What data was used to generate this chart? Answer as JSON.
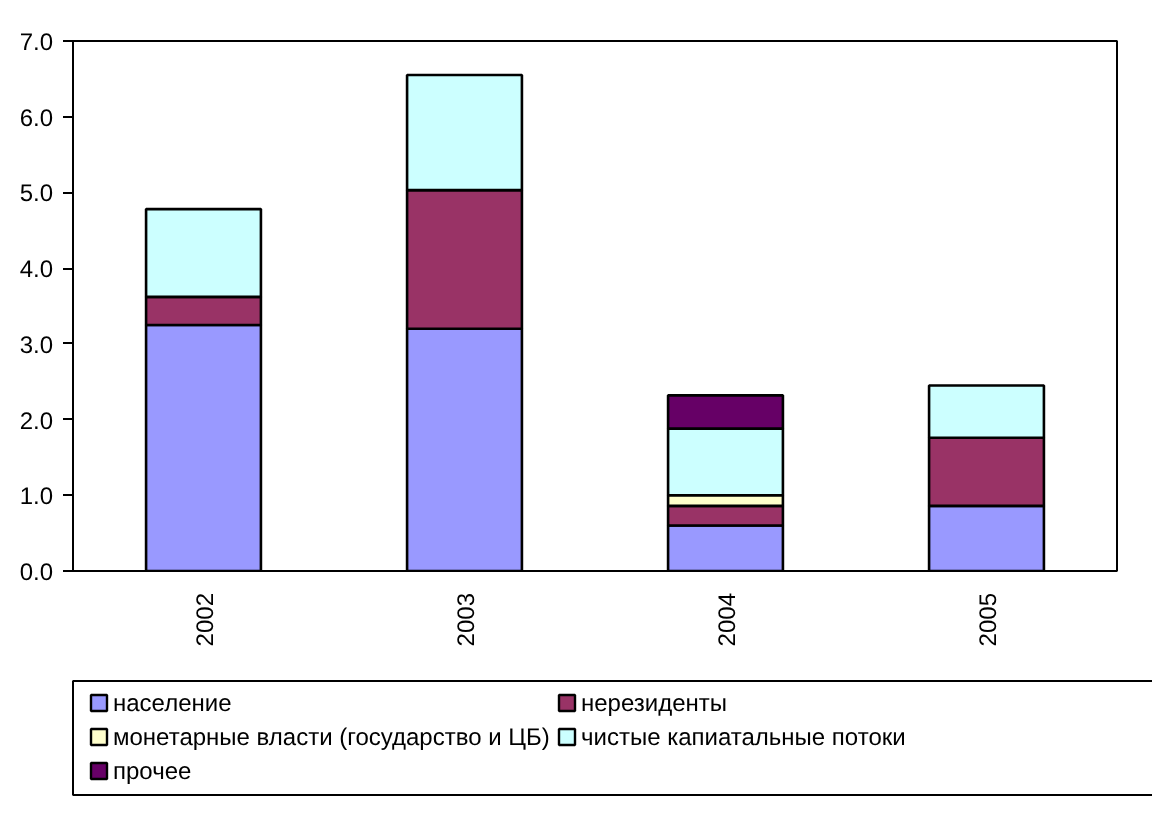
{
  "chart_data": {
    "type": "bar",
    "stacked": true,
    "categories": [
      "2002",
      "2003",
      "2004",
      "2005"
    ],
    "series": [
      {
        "name": "население",
        "color": "#9999ff",
        "values": [
          3.25,
          3.2,
          0.6,
          0.86
        ]
      },
      {
        "name": "нерезиденты",
        "color": "#993366",
        "values": [
          0.37,
          1.83,
          0.26,
          0.9
        ]
      },
      {
        "name": "монетарные власти (государство и ЦБ)",
        "color": "#ffffcc",
        "values": [
          null,
          null,
          0.14,
          null
        ]
      },
      {
        "name": "чистые капиатальные потоки",
        "color": "#ccffff",
        "values": [
          1.16,
          1.52,
          0.88,
          0.69
        ]
      },
      {
        "name": "прочее",
        "color": "#660066",
        "values": [
          null,
          null,
          0.44,
          null
        ]
      }
    ],
    "ylim": [
      0,
      7
    ],
    "yticks": [
      {
        "value": 0,
        "label": "0.0"
      },
      {
        "value": 1,
        "label": "1.0"
      },
      {
        "value": 2,
        "label": "2.0"
      },
      {
        "value": 3,
        "label": "3.0"
      },
      {
        "value": 4,
        "label": "4.0"
      },
      {
        "value": 5,
        "label": "5.0"
      },
      {
        "value": 6,
        "label": "6.0"
      },
      {
        "value": 7,
        "label": "7.0"
      }
    ],
    "grid": false,
    "legend": "bottom"
  }
}
